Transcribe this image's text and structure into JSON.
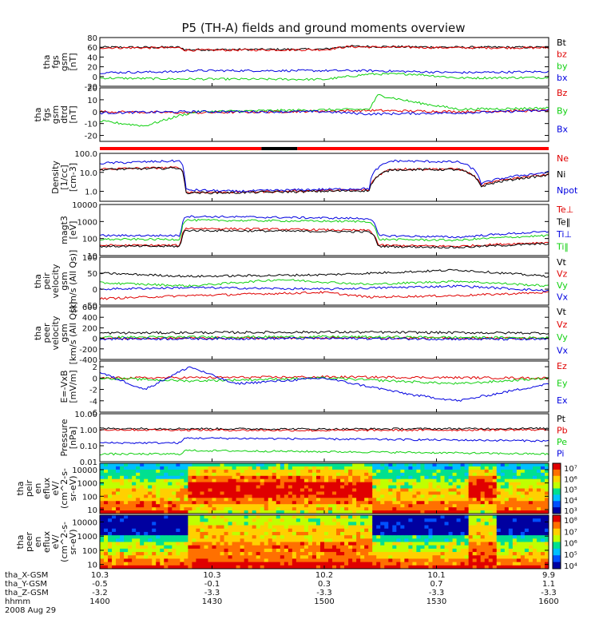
{
  "title": "P5 (TH-A) fields and ground moments overview",
  "colors": {
    "black": "#000000",
    "red": "#e00000",
    "green": "#10d010",
    "blue": "#0000e0",
    "bar_red": "#ff0000",
    "bar_black": "#000000"
  },
  "chart_data": [
    {
      "type": "line",
      "ylabel_lines": [
        "tha",
        "fgs",
        "gsm",
        "[nT]"
      ],
      "ylim": [
        -20,
        80
      ],
      "yticks": [
        "80",
        "60",
        "40",
        "20",
        "0",
        "-20"
      ],
      "yvals": [
        80,
        60,
        40,
        20,
        0,
        -20
      ],
      "legend": [
        {
          "name": "Bt",
          "color": "black"
        },
        {
          "name": "bz",
          "color": "red"
        },
        {
          "name": "by",
          "color": "green"
        },
        {
          "name": "bx",
          "color": "blue"
        }
      ],
      "series": [
        {
          "name": "Bt",
          "color": "black",
          "x": [
            0,
            0.18,
            0.19,
            0.5,
            0.55,
            0.8,
            1
          ],
          "y": [
            60,
            60,
            55,
            56,
            62,
            60,
            60
          ]
        },
        {
          "name": "bz",
          "color": "red",
          "x": [
            0,
            0.18,
            0.19,
            0.5,
            0.55,
            0.8,
            1
          ],
          "y": [
            59,
            59,
            54,
            55,
            61,
            59,
            59
          ]
        },
        {
          "name": "by",
          "color": "green",
          "x": [
            0,
            0.18,
            0.19,
            0.5,
            0.6,
            0.7,
            0.8,
            1
          ],
          "y": [
            -3,
            -5,
            -5,
            -6,
            5,
            5,
            -3,
            -2
          ]
        },
        {
          "name": "bx",
          "color": "blue",
          "x": [
            0,
            0.18,
            0.19,
            0.6,
            0.8,
            1
          ],
          "y": [
            8,
            10,
            12,
            12,
            8,
            10
          ]
        }
      ]
    },
    {
      "type": "line",
      "ylabel_lines": [
        "tha",
        "fgs",
        "gsm",
        "dtrd",
        "[nT]"
      ],
      "ylim": [
        -25,
        20
      ],
      "yticks": [
        "20",
        "10",
        "0",
        "-10",
        "-20"
      ],
      "yvals": [
        20,
        10,
        0,
        -10,
        -20
      ],
      "legend": [
        {
          "name": "Bz",
          "color": "red"
        },
        {
          "name": "By",
          "color": "green"
        },
        {
          "name": "Bx",
          "color": "blue"
        }
      ],
      "series": [
        {
          "name": "Bz",
          "color": "red",
          "x": [
            0,
            0.2,
            0.4,
            0.6,
            0.8,
            1
          ],
          "y": [
            0,
            -1,
            0,
            1,
            0,
            1
          ]
        },
        {
          "name": "By",
          "color": "green",
          "x": [
            0,
            0.1,
            0.18,
            0.22,
            0.6,
            0.62,
            0.7,
            0.8,
            1
          ],
          "y": [
            -8,
            -12,
            -3,
            0,
            2,
            14,
            8,
            2,
            3
          ]
        },
        {
          "name": "Bx",
          "color": "blue",
          "x": [
            0,
            0.2,
            0.5,
            0.6,
            0.8,
            1
          ],
          "y": [
            -1,
            0,
            0,
            -2,
            -1,
            1
          ]
        }
      ]
    },
    {
      "type": "log-line",
      "ylabel_lines": [
        "Density",
        "[1/cc]",
        "[cm-3]"
      ],
      "ylim": [
        0.3,
        100
      ],
      "yticks": [
        "100.0",
        "10.0",
        "1.0"
      ],
      "yvals": [
        100,
        10,
        1
      ],
      "legend": [
        {
          "name": "Ne",
          "color": "red"
        },
        {
          "name": "Ni",
          "color": "black"
        },
        {
          "name": "Npot",
          "color": "blue"
        }
      ],
      "series": [
        {
          "name": "Ne",
          "color": "red",
          "x": [
            0,
            0.18,
            0.19,
            0.3,
            0.6,
            0.65,
            0.8,
            0.85,
            1
          ],
          "y": [
            15,
            18,
            0.9,
            0.9,
            1.2,
            15,
            15,
            2,
            8
          ]
        },
        {
          "name": "Ni",
          "color": "black",
          "x": [
            0,
            0.18,
            0.19,
            0.3,
            0.6,
            0.65,
            0.8,
            0.85,
            1
          ],
          "y": [
            14,
            17,
            0.85,
            0.85,
            1.1,
            14,
            14,
            1.8,
            7
          ]
        },
        {
          "name": "Npot",
          "color": "blue",
          "x": [
            0,
            0.18,
            0.19,
            0.3,
            0.6,
            0.65,
            0.8,
            0.85,
            1
          ],
          "y": [
            30,
            40,
            1.2,
            1.0,
            1.4,
            40,
            35,
            2.5,
            10
          ]
        }
      ]
    },
    {
      "type": "log-line",
      "ylabel_lines": [
        "magt3",
        "[eV]"
      ],
      "ylim": [
        10,
        10000
      ],
      "yticks": [
        "10000",
        "1000",
        "100",
        "10"
      ],
      "yvals": [
        10000,
        1000,
        100,
        10
      ],
      "legend": [
        {
          "name": "Te⊥",
          "color": "red"
        },
        {
          "name": "Te‖",
          "color": "black"
        },
        {
          "name": "Ti⊥",
          "color": "blue"
        },
        {
          "name": "Ti‖",
          "color": "green"
        }
      ],
      "series": [
        {
          "name": "Te⊥",
          "color": "red",
          "x": [
            0,
            0.18,
            0.19,
            0.6,
            0.62,
            0.8,
            1
          ],
          "y": [
            40,
            40,
            400,
            300,
            40,
            35,
            60
          ]
        },
        {
          "name": "Te‖",
          "color": "black",
          "x": [
            0,
            0.18,
            0.19,
            0.6,
            0.62,
            0.8,
            1
          ],
          "y": [
            35,
            35,
            300,
            250,
            35,
            30,
            50
          ]
        },
        {
          "name": "Ti⊥",
          "color": "blue",
          "x": [
            0,
            0.18,
            0.19,
            0.6,
            0.62,
            0.8,
            1
          ],
          "y": [
            150,
            150,
            2000,
            1500,
            150,
            120,
            250
          ]
        },
        {
          "name": "Ti‖",
          "color": "green",
          "x": [
            0,
            0.18,
            0.19,
            0.6,
            0.62,
            0.8,
            1
          ],
          "y": [
            90,
            90,
            1200,
            1000,
            90,
            80,
            150
          ]
        }
      ]
    },
    {
      "type": "line",
      "ylabel_lines": [
        "tha",
        "peir",
        "velocity",
        "gsm",
        "[km/s (All Qs)]"
      ],
      "ylim": [
        -50,
        100
      ],
      "yticks": [
        "100",
        "50",
        "0",
        "-50"
      ],
      "yvals": [
        100,
        50,
        0,
        -50
      ],
      "legend": [
        {
          "name": "Vt",
          "color": "black"
        },
        {
          "name": "Vz",
          "color": "red"
        },
        {
          "name": "Vy",
          "color": "green"
        },
        {
          "name": "Vx",
          "color": "blue"
        }
      ],
      "series": [
        {
          "name": "Vt",
          "color": "black",
          "x": [
            0,
            0.2,
            0.5,
            0.8,
            1
          ],
          "y": [
            50,
            40,
            45,
            60,
            40
          ]
        },
        {
          "name": "Vz",
          "color": "red",
          "x": [
            0,
            0.2,
            0.5,
            0.6,
            0.8,
            1
          ],
          "y": [
            -30,
            -20,
            -10,
            -25,
            -20,
            -10
          ]
        },
        {
          "name": "Vy",
          "color": "green",
          "x": [
            0,
            0.2,
            0.4,
            0.6,
            0.8,
            1
          ],
          "y": [
            20,
            10,
            30,
            15,
            25,
            10
          ]
        },
        {
          "name": "Vx",
          "color": "blue",
          "x": [
            0,
            0.2,
            0.5,
            0.8,
            1
          ],
          "y": [
            0,
            5,
            0,
            10,
            -5
          ]
        }
      ]
    },
    {
      "type": "line",
      "ylabel_lines": [
        "tha",
        "peer",
        "velocity",
        "gsm",
        "[km/s (All Qs)]"
      ],
      "ylim": [
        -400,
        600
      ],
      "yticks": [
        "600",
        "400",
        "200",
        "0",
        "-200",
        "-400"
      ],
      "yvals": [
        600,
        400,
        200,
        0,
        -200,
        -400
      ],
      "legend": [
        {
          "name": "Vt",
          "color": "black"
        },
        {
          "name": "Vz",
          "color": "red"
        },
        {
          "name": "Vy",
          "color": "green"
        },
        {
          "name": "Vx",
          "color": "blue"
        }
      ],
      "series": [
        {
          "name": "Vt",
          "color": "black",
          "x": [
            0,
            0.5,
            1
          ],
          "y": [
            100,
            120,
            100
          ]
        },
        {
          "name": "Vz",
          "color": "red",
          "x": [
            0,
            0.5,
            1
          ],
          "y": [
            0,
            10,
            0
          ]
        },
        {
          "name": "Vy",
          "color": "green",
          "x": [
            0,
            0.5,
            1
          ],
          "y": [
            20,
            30,
            10
          ]
        },
        {
          "name": "Vx",
          "color": "blue",
          "x": [
            0,
            0.5,
            1
          ],
          "y": [
            -10,
            0,
            -20
          ]
        }
      ]
    },
    {
      "type": "line",
      "ylabel_lines": [
        "E=-VxB",
        "[mV/m]"
      ],
      "ylim": [
        -6,
        3
      ],
      "yticks": [
        "2",
        "0",
        "-2",
        "-4",
        "-6"
      ],
      "yvals": [
        2,
        0,
        -2,
        -4,
        -6
      ],
      "legend": [
        {
          "name": "Ez",
          "color": "red"
        },
        {
          "name": "Ey",
          "color": "green"
        },
        {
          "name": "Ex",
          "color": "blue"
        }
      ],
      "series": [
        {
          "name": "Ez",
          "color": "red",
          "x": [
            0,
            0.5,
            1
          ],
          "y": [
            0,
            0.2,
            0
          ]
        },
        {
          "name": "Ey",
          "color": "green",
          "x": [
            0,
            0.2,
            0.5,
            0.8,
            1
          ],
          "y": [
            0,
            -0.5,
            0,
            -1,
            0
          ]
        },
        {
          "name": "Ex",
          "color": "blue",
          "x": [
            0,
            0.1,
            0.2,
            0.3,
            0.5,
            0.7,
            0.8,
            1
          ],
          "y": [
            1,
            -2,
            2,
            -1,
            0,
            -3,
            -4,
            -1
          ]
        }
      ]
    },
    {
      "type": "log-line",
      "ylabel_lines": [
        "Pressure",
        "[nPa]"
      ],
      "ylim": [
        0.01,
        10
      ],
      "yticks": [
        "10.00",
        "1.00",
        "0.10",
        "0.01"
      ],
      "yvals": [
        10,
        1,
        0.1,
        0.01
      ],
      "legend": [
        {
          "name": "Pt",
          "color": "black"
        },
        {
          "name": "Pb",
          "color": "red"
        },
        {
          "name": "Pe",
          "color": "green"
        },
        {
          "name": "Pi",
          "color": "blue"
        }
      ],
      "series": [
        {
          "name": "Pt",
          "color": "black",
          "x": [
            0,
            0.5,
            1
          ],
          "y": [
            1.2,
            1.1,
            1.2
          ]
        },
        {
          "name": "Pb",
          "color": "red",
          "x": [
            0,
            0.5,
            1
          ],
          "y": [
            1.0,
            0.9,
            1.0
          ]
        },
        {
          "name": "Pe",
          "color": "green",
          "x": [
            0,
            0.18,
            0.19,
            0.6,
            1
          ],
          "y": [
            0.03,
            0.03,
            0.05,
            0.04,
            0.03
          ]
        },
        {
          "name": "Pi",
          "color": "blue",
          "x": [
            0,
            0.18,
            0.19,
            0.6,
            1
          ],
          "y": [
            0.15,
            0.15,
            0.3,
            0.25,
            0.2
          ]
        }
      ]
    },
    {
      "type": "heatmap",
      "ylabel_lines": [
        "tha",
        "peir",
        "en",
        "eflux",
        "eV/",
        "(cm^2-s-",
        "sr-eV)"
      ],
      "yticks": [
        "10000",
        "1000",
        "100",
        "10"
      ],
      "yvals": [
        10000,
        1000,
        100,
        10
      ],
      "ylim": [
        5,
        30000
      ],
      "colorbar_ticks": [
        "10⁷",
        "10⁶",
        "10⁵",
        "10⁴",
        "10³"
      ]
    },
    {
      "type": "heatmap",
      "ylabel_lines": [
        "tha",
        "peer",
        "en",
        "eflux",
        "eV/",
        "(cm^2-s-",
        "sr-eV)"
      ],
      "yticks": [
        "10000",
        "1000",
        "100",
        "10"
      ],
      "yvals": [
        10000,
        1000,
        100,
        10
      ],
      "ylim": [
        5,
        30000
      ],
      "colorbar_ticks": [
        "10⁸",
        "10⁷",
        "10⁶",
        "10⁵",
        "10⁴"
      ]
    }
  ],
  "x_axis": {
    "ticks": [
      "1400",
      "1430",
      "1500",
      "1530",
      "1600"
    ],
    "rows": [
      {
        "label": "tha_X-GSM",
        "values": [
          "10.3",
          "10.3",
          "10.2",
          "10.1",
          "9.9"
        ]
      },
      {
        "label": "tha_Y-GSM",
        "values": [
          "-0.5",
          "-0.1",
          "0.3",
          "0.7",
          "1.1"
        ]
      },
      {
        "label": "tha_Z-GSM",
        "values": [
          "-3.2",
          "-3.3",
          "-3.3",
          "-3.3",
          "-3.3"
        ]
      },
      {
        "label": "hhmm",
        "values": [
          "1400",
          "1430",
          "1500",
          "1530",
          "1600"
        ]
      }
    ],
    "date": "2008 Aug 29"
  },
  "mode_bar": {
    "segments": [
      {
        "from": 0.0,
        "to": 0.36,
        "color": "bar_red"
      },
      {
        "from": 0.36,
        "to": 0.44,
        "color": "bar_black"
      },
      {
        "from": 0.44,
        "to": 1.0,
        "color": "bar_red"
      }
    ]
  }
}
